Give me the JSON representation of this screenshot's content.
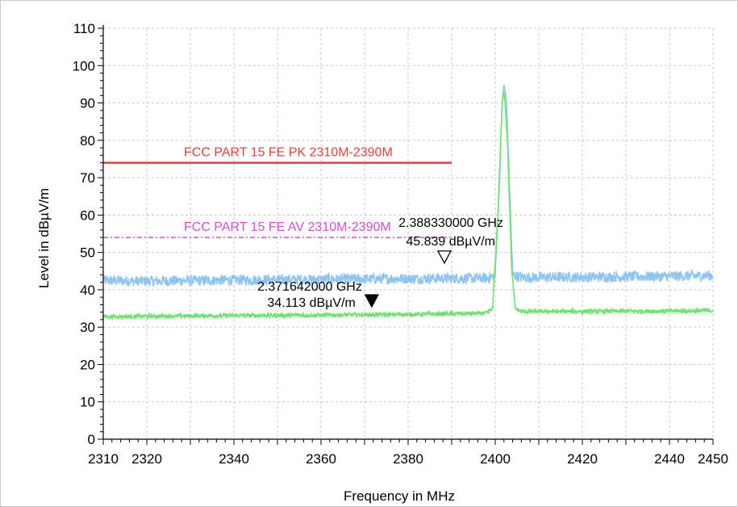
{
  "chart_data": {
    "type": "line",
    "xlabel": "Frequency in MHz",
    "ylabel": "Level in dBµV/m",
    "xlim": [
      2310,
      2450
    ],
    "ylim": [
      0,
      110
    ],
    "x_ticks": [
      2310,
      2320,
      2340,
      2360,
      2380,
      2400,
      2420,
      2440,
      2450
    ],
    "y_ticks": [
      0,
      10,
      20,
      30,
      40,
      50,
      60,
      70,
      80,
      90,
      100,
      110
    ],
    "grid": true,
    "series": [
      {
        "color": "#8ec5f0",
        "style": "noisy",
        "x": [
          2310,
          2320,
          2340,
          2360,
          2380,
          2398,
          2400,
          2401,
          2401.6,
          2402,
          2402.6,
          2403.2,
          2404,
          2406,
          2420,
          2440,
          2450
        ],
        "y": [
          42.5,
          42.3,
          42.6,
          42.8,
          43.0,
          43.1,
          43.6,
          70,
          90,
          95,
          90,
          70,
          44,
          43.3,
          43.4,
          43.6,
          43.8
        ]
      },
      {
        "color": "#6ee36e",
        "style": "noisy",
        "x": [
          2310,
          2320,
          2340,
          2360,
          2380,
          2398,
          2399.4,
          2400.6,
          2401.6,
          2402.1,
          2402.8,
          2403.8,
          2404.6,
          2406,
          2420,
          2440,
          2450
        ],
        "y": [
          32.8,
          32.9,
          33.1,
          33.2,
          33.4,
          33.7,
          35,
          60,
          90,
          93,
          80,
          45,
          35,
          34.2,
          34.2,
          34.3,
          34.4
        ]
      }
    ],
    "limit_lines": [
      {
        "label": "FCC PART 15 FE PK 2310M-2390M",
        "x": [
          2310,
          2390
        ],
        "y": 74,
        "color": "#e04040",
        "style": "solid",
        "label_color": "#e04040"
      },
      {
        "label": "FCC PART 15 FE AV 2310M-2390M",
        "x": [
          2310,
          2390
        ],
        "y": 54,
        "color": "#d050d0",
        "style": "dashed",
        "label_color": "#d050d0"
      }
    ],
    "markers": [
      {
        "freq_label": "2.371642000 GHz",
        "level_label": "34.113 dBµV/m",
        "x": 2371.642,
        "y": 34.113,
        "filled": true
      },
      {
        "freq_label": "2.388330000 GHz",
        "level_label": "45.839 dBµV/m",
        "x": 2388.33,
        "y": 45.839,
        "filled": false
      }
    ]
  }
}
